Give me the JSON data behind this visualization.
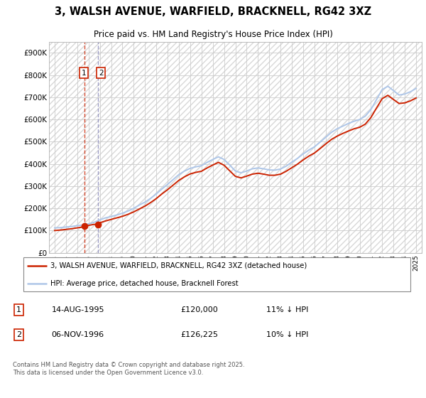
{
  "title": "3, WALSH AVENUE, WARFIELD, BRACKNELL, RG42 3XZ",
  "subtitle": "Price paid vs. HM Land Registry's House Price Index (HPI)",
  "ylim": [
    0,
    950000
  ],
  "yticks": [
    0,
    100000,
    200000,
    300000,
    400000,
    500000,
    600000,
    700000,
    800000,
    900000
  ],
  "ytick_labels": [
    "£0",
    "£100K",
    "£200K",
    "£300K",
    "£400K",
    "£500K",
    "£600K",
    "£700K",
    "£800K",
    "£900K"
  ],
  "xlim_start": 1992.5,
  "xlim_end": 2025.5,
  "hpi_color": "#aec6e8",
  "price_color": "#cc2200",
  "grid_color": "#cccccc",
  "sale1_date": "14-AUG-1995",
  "sale1_price": 120000,
  "sale1_label": "11% ↓ HPI",
  "sale2_date": "06-NOV-1996",
  "sale2_price": 126225,
  "sale2_label": "10% ↓ HPI",
  "sale1_x": 1995.62,
  "sale2_x": 1996.85,
  "legend_line1": "3, WALSH AVENUE, WARFIELD, BRACKNELL, RG42 3XZ (detached house)",
  "legend_line2": "HPI: Average price, detached house, Bracknell Forest",
  "footnote": "Contains HM Land Registry data © Crown copyright and database right 2025.\nThis data is licensed under the Open Government Licence v3.0.",
  "hpi_x": [
    1993.0,
    1993.5,
    1994.0,
    1994.5,
    1995.0,
    1995.5,
    1996.0,
    1996.5,
    1997.0,
    1997.5,
    1998.0,
    1998.5,
    1999.0,
    1999.5,
    2000.0,
    2000.5,
    2001.0,
    2001.5,
    2002.0,
    2002.5,
    2003.0,
    2003.5,
    2004.0,
    2004.5,
    2005.0,
    2005.5,
    2006.0,
    2006.5,
    2007.0,
    2007.5,
    2008.0,
    2008.5,
    2009.0,
    2009.5,
    2010.0,
    2010.5,
    2011.0,
    2011.5,
    2012.0,
    2012.5,
    2013.0,
    2013.5,
    2014.0,
    2014.5,
    2015.0,
    2015.5,
    2016.0,
    2016.5,
    2017.0,
    2017.5,
    2018.0,
    2018.5,
    2019.0,
    2019.5,
    2020.0,
    2020.5,
    2021.0,
    2021.5,
    2022.0,
    2022.5,
    2023.0,
    2023.5,
    2024.0,
    2024.5,
    2025.0
  ],
  "hpi_y": [
    112000,
    113000,
    116000,
    118000,
    122000,
    125000,
    130000,
    137000,
    148000,
    157000,
    163000,
    170000,
    178000,
    188000,
    200000,
    215000,
    228000,
    245000,
    265000,
    287000,
    308000,
    330000,
    352000,
    368000,
    380000,
    387000,
    392000,
    407000,
    420000,
    432000,
    420000,
    395000,
    368000,
    360000,
    368000,
    378000,
    382000,
    378000,
    373000,
    372000,
    377000,
    390000,
    408000,
    425000,
    445000,
    462000,
    477000,
    498000,
    520000,
    542000,
    558000,
    570000,
    582000,
    592000,
    600000,
    615000,
    645000,
    690000,
    735000,
    750000,
    730000,
    710000,
    715000,
    725000,
    740000
  ],
  "price_x": [
    1993.0,
    1993.5,
    1994.0,
    1994.5,
    1995.0,
    1995.5,
    1995.62,
    1996.0,
    1996.5,
    1996.85,
    1997.0,
    1997.5,
    1998.0,
    1998.5,
    1999.0,
    1999.5,
    2000.0,
    2000.5,
    2001.0,
    2001.5,
    2002.0,
    2002.5,
    2003.0,
    2003.5,
    2004.0,
    2004.5,
    2005.0,
    2005.5,
    2006.0,
    2006.5,
    2007.0,
    2007.5,
    2008.0,
    2008.5,
    2009.0,
    2009.5,
    2010.0,
    2010.5,
    2011.0,
    2011.5,
    2012.0,
    2012.5,
    2013.0,
    2013.5,
    2014.0,
    2014.5,
    2015.0,
    2015.5,
    2016.0,
    2016.5,
    2017.0,
    2017.5,
    2018.0,
    2018.5,
    2019.0,
    2019.5,
    2020.0,
    2020.5,
    2021.0,
    2021.5,
    2022.0,
    2022.5,
    2023.0,
    2023.5,
    2024.0,
    2024.5,
    2025.0
  ],
  "price_y": [
    100000,
    102000,
    105000,
    108000,
    112000,
    116000,
    120000,
    123000,
    128000,
    126225,
    135000,
    143000,
    150000,
    157000,
    164000,
    173000,
    184000,
    197000,
    210000,
    226000,
    244000,
    265000,
    284000,
    305000,
    326000,
    342000,
    355000,
    362000,
    367000,
    382000,
    395000,
    407000,
    394000,
    369000,
    344000,
    337000,
    345000,
    354000,
    358000,
    354000,
    349000,
    349000,
    354000,
    367000,
    383000,
    399000,
    418000,
    435000,
    449000,
    469000,
    490000,
    510000,
    525000,
    537000,
    548000,
    558000,
    565000,
    579000,
    609000,
    652000,
    694000,
    709000,
    690000,
    672000,
    675000,
    684000,
    697000
  ],
  "vline1_color": "#cc2200",
  "vline2_color": "#8888bb"
}
